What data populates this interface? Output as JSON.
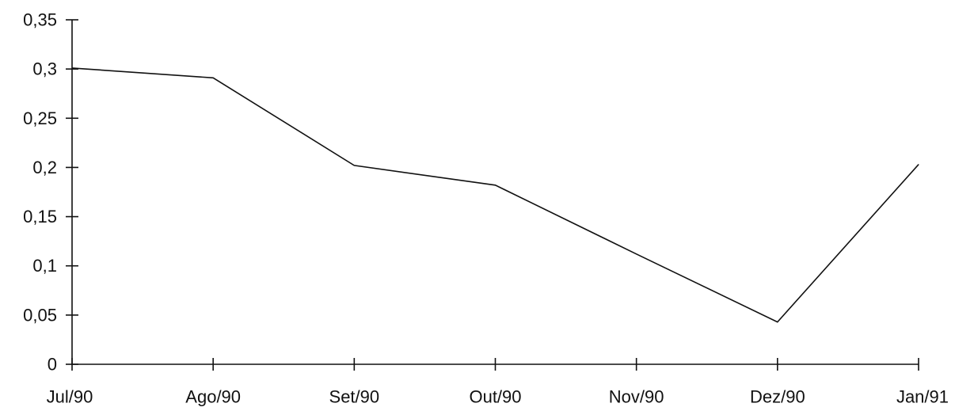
{
  "chart_data": {
    "type": "line",
    "categories": [
      "Jul/90",
      "Ago/90",
      "Set/90",
      "Out/90",
      "Nov/90",
      "Dez/90",
      "Jan/91"
    ],
    "series": [
      {
        "values": [
          0.301,
          0.291,
          0.202,
          0.182,
          0.112,
          0.043,
          0.203
        ]
      }
    ],
    "y_ticks": [
      "0",
      "0,05",
      "0,1",
      "0,15",
      "0,2",
      "0,25",
      "0,3",
      "0,35"
    ],
    "y_tick_values": [
      0,
      0.05,
      0.1,
      0.15,
      0.2,
      0.25,
      0.3,
      0.35
    ],
    "ylim": [
      0,
      0.35
    ],
    "grid": false,
    "legend": "none",
    "line_color": "#111111"
  }
}
